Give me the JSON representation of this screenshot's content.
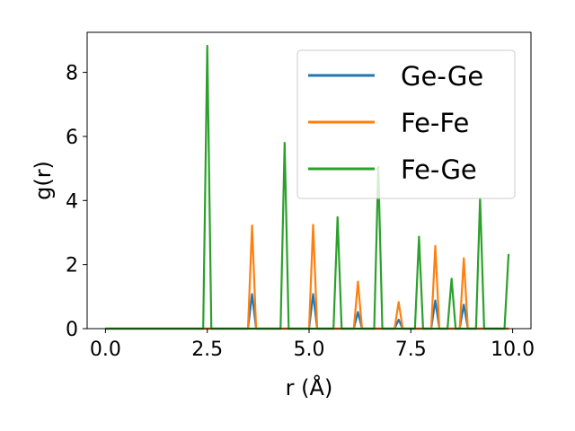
{
  "chart_data": {
    "type": "line",
    "xlabel": "r (Å)",
    "ylabel": "g(r)",
    "xlim": [
      -0.45,
      10.45
    ],
    "ylim": [
      0,
      9.25
    ],
    "xticks": [
      0.0,
      2.5,
      5.0,
      7.5,
      10.0
    ],
    "xtick_labels": [
      "0.0",
      "2.5",
      "5.0",
      "7.5",
      "10.0"
    ],
    "yticks": [
      0,
      2,
      4,
      6,
      8
    ],
    "ytick_labels": [
      "0",
      "2",
      "4",
      "6",
      "8"
    ],
    "grid": false,
    "legend_position": "top-right",
    "series": [
      {
        "name": "Ge-Ge",
        "color": "#1f77b4",
        "x": [
          0.0,
          3.5,
          3.6,
          3.7,
          5.0,
          5.1,
          5.2,
          6.1,
          6.2,
          6.3,
          7.1,
          7.2,
          7.3,
          8.0,
          8.1,
          8.2,
          8.7,
          8.8,
          8.9,
          9.9
        ],
        "values": [
          0,
          0,
          1.08,
          0,
          0,
          1.08,
          0,
          0,
          0.52,
          0,
          0,
          0.28,
          0,
          0,
          0.88,
          0,
          0,
          0.75,
          0,
          0
        ]
      },
      {
        "name": "Fe-Fe",
        "color": "#ff7f0e",
        "x": [
          0.0,
          3.5,
          3.6,
          3.7,
          5.0,
          5.1,
          5.2,
          6.1,
          6.2,
          6.3,
          7.1,
          7.2,
          7.3,
          8.0,
          8.1,
          8.2,
          8.7,
          8.8,
          8.9,
          9.9
        ],
        "values": [
          0,
          0,
          3.22,
          0,
          0,
          3.24,
          0,
          0,
          1.47,
          0,
          0,
          0.83,
          0,
          0,
          2.58,
          0,
          0,
          2.2,
          0,
          0
        ]
      },
      {
        "name": "Fe-Ge",
        "color": "#2ca02c",
        "x": [
          0.0,
          2.4,
          2.5,
          2.6,
          4.3,
          4.4,
          4.5,
          5.6,
          5.7,
          5.8,
          6.6,
          6.7,
          6.8,
          7.6,
          7.7,
          7.8,
          8.4,
          8.5,
          8.6,
          9.1,
          9.2,
          9.3,
          9.8,
          9.9
        ],
        "values": [
          0,
          0,
          8.83,
          0,
          0,
          5.8,
          0,
          0,
          3.48,
          0,
          0,
          5.05,
          0,
          0,
          2.87,
          0,
          0,
          1.56,
          0,
          0,
          4.08,
          0,
          0,
          2.33
        ]
      }
    ]
  }
}
